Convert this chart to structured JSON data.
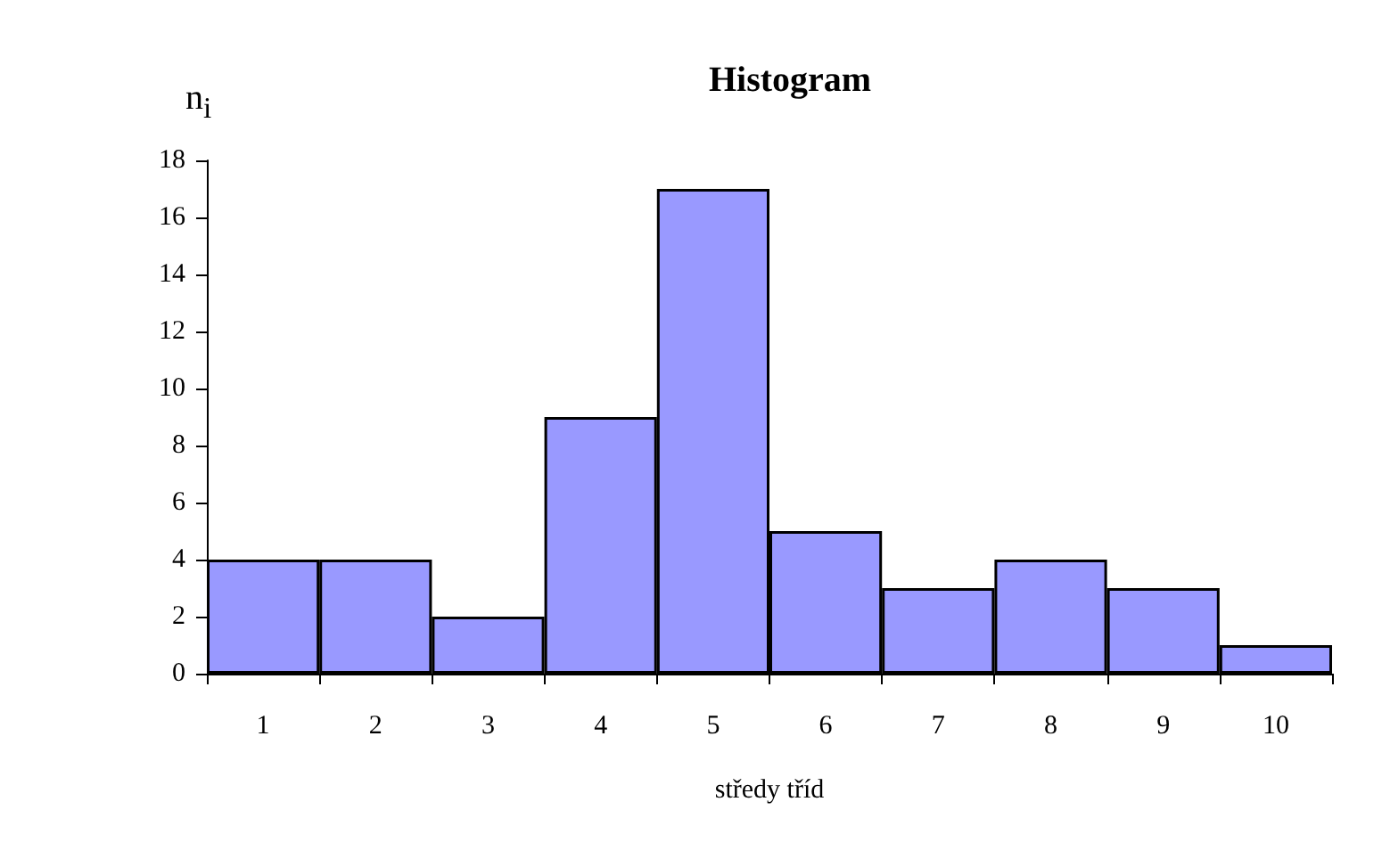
{
  "chart_data": {
    "type": "bar",
    "title": "Histogram",
    "xlabel": "středy tříd",
    "ylabel": "n$_{i}$",
    "categories": [
      "1",
      "2",
      "3",
      "4",
      "5",
      "6",
      "7",
      "8",
      "9",
      "10"
    ],
    "values": [
      4,
      4,
      2,
      9,
      17,
      5,
      3,
      4,
      3,
      1
    ],
    "color": "#9999ff",
    "ylim": [
      0,
      18
    ],
    "yticks": [
      0,
      2,
      4,
      6,
      8,
      10,
      12,
      14,
      16,
      18
    ],
    "grid": false
  }
}
